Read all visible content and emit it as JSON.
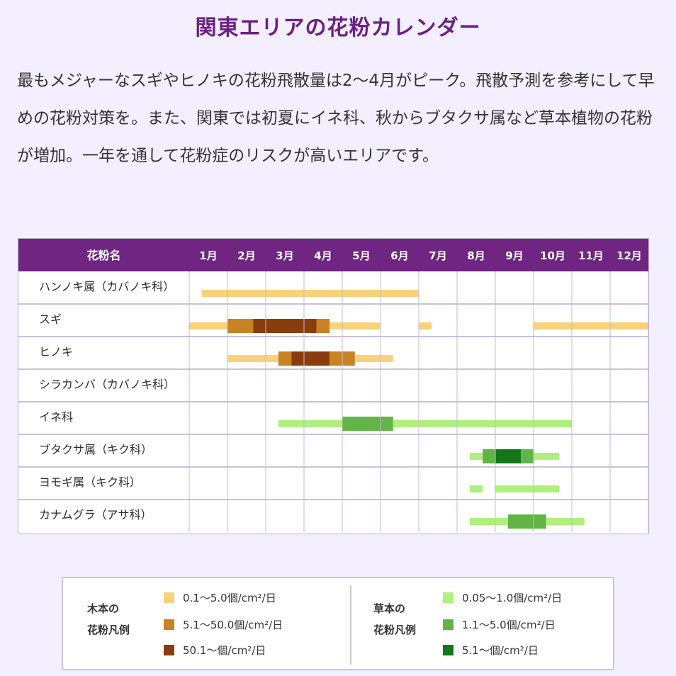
{
  "title": "関東エリアの花粉カレンダー",
  "description": "最もメジャーなスギやヒノキの花粉飛散量は2〜4月がピーク。飛散予測を参考にして早めの花粉対策を。また、関東では初夏にイネ科、秋からブタクサ属など草本植物の花粉が増加。一年を通して花粉症のリスクが高いエリアです。",
  "colors": {
    "header_bg": "#6f2581",
    "tree_low": "#f8d27a",
    "tree_mid": "#c98224",
    "tree_high": "#8a3c0d",
    "grass_low": "#b0ef7e",
    "grass_mid": "#62b447",
    "grass_high": "#12781a"
  },
  "chart_data": {
    "type": "heatmap",
    "header_label": "花粉名",
    "months": [
      "1月",
      "2月",
      "3月",
      "4月",
      "5月",
      "6月",
      "7月",
      "8月",
      "9月",
      "10月",
      "11月",
      "12月"
    ],
    "levels_note": "month values are 1-based; start inclusive, end exclusive (13 = end of December)",
    "rows": [
      {
        "name": "ハンノキ属（カバノキ科）",
        "periods": [
          {
            "start": 1.33,
            "end": 7.0,
            "level": "tree_low"
          }
        ]
      },
      {
        "name": "スギ",
        "periods": [
          {
            "start": 1.0,
            "end": 2.0,
            "level": "tree_low"
          },
          {
            "start": 2.0,
            "end": 2.67,
            "level": "tree_mid"
          },
          {
            "start": 2.67,
            "end": 4.33,
            "level": "tree_high"
          },
          {
            "start": 4.33,
            "end": 4.67,
            "level": "tree_mid"
          },
          {
            "start": 4.67,
            "end": 6.0,
            "level": "tree_low"
          },
          {
            "start": 7.0,
            "end": 7.33,
            "level": "tree_low"
          },
          {
            "start": 10.0,
            "end": 13.0,
            "level": "tree_low"
          }
        ]
      },
      {
        "name": "ヒノキ",
        "periods": [
          {
            "start": 2.0,
            "end": 3.33,
            "level": "tree_low"
          },
          {
            "start": 3.33,
            "end": 3.67,
            "level": "tree_mid"
          },
          {
            "start": 3.67,
            "end": 4.67,
            "level": "tree_high"
          },
          {
            "start": 4.67,
            "end": 5.33,
            "level": "tree_mid"
          },
          {
            "start": 5.33,
            "end": 6.33,
            "level": "tree_low"
          }
        ]
      },
      {
        "name": "シラカンバ（カバノキ科）",
        "periods": []
      },
      {
        "name": "イネ科",
        "periods": [
          {
            "start": 3.33,
            "end": 5.0,
            "level": "grass_low"
          },
          {
            "start": 5.0,
            "end": 6.33,
            "level": "grass_mid"
          },
          {
            "start": 6.33,
            "end": 11.0,
            "level": "grass_low"
          }
        ]
      },
      {
        "name": "ブタクサ属（キク科）",
        "periods": [
          {
            "start": 8.33,
            "end": 8.67,
            "level": "grass_low"
          },
          {
            "start": 8.67,
            "end": 9.0,
            "level": "grass_mid"
          },
          {
            "start": 9.0,
            "end": 9.67,
            "level": "grass_high"
          },
          {
            "start": 9.67,
            "end": 10.0,
            "level": "grass_mid"
          },
          {
            "start": 10.0,
            "end": 10.67,
            "level": "grass_low"
          }
        ]
      },
      {
        "name": "ヨモギ属（キク科）",
        "periods": [
          {
            "start": 8.33,
            "end": 8.67,
            "level": "grass_low"
          },
          {
            "start": 9.0,
            "end": 10.67,
            "level": "grass_low"
          }
        ]
      },
      {
        "name": "カナムグラ（アサ科）",
        "periods": [
          {
            "start": 8.33,
            "end": 9.33,
            "level": "grass_low"
          },
          {
            "start": 9.33,
            "end": 10.33,
            "level": "grass_mid"
          },
          {
            "start": 10.33,
            "end": 11.33,
            "level": "grass_low"
          }
        ]
      }
    ]
  },
  "legend": {
    "tree_heading_line1": "木本の",
    "tree_heading_line2": "花粉凡例",
    "grass_heading_line1": "草本の",
    "grass_heading_line2": "花粉凡例",
    "tree_items": [
      {
        "label": "0.1〜5.0個/cm²/日",
        "color_key": "tree_low"
      },
      {
        "label": "5.1〜50.0個/cm²/日",
        "color_key": "tree_mid"
      },
      {
        "label": "50.1〜個/cm²/日",
        "color_key": "tree_high"
      }
    ],
    "grass_items": [
      {
        "label": "0.05〜1.0個/cm²/日",
        "color_key": "grass_low"
      },
      {
        "label": "1.1〜5.0個/cm²/日",
        "color_key": "grass_mid"
      },
      {
        "label": "5.1〜個/cm²/日",
        "color_key": "grass_high"
      }
    ]
  }
}
